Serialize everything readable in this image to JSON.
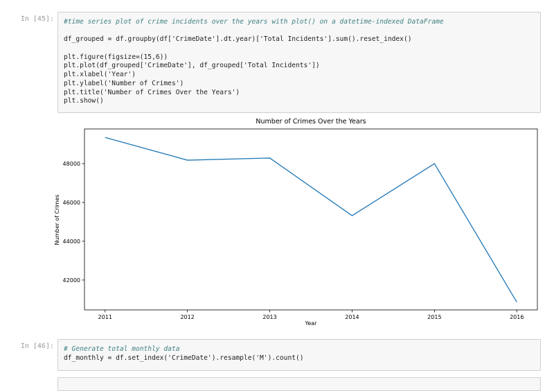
{
  "cells": [
    {
      "prompt": "In [45]:",
      "code": [
        [
          "#time series plot of crime incidents over the years with plot() on a datetime-indexed DataFrame"
        ],
        [
          "df_grouped = df.groupby(df['CrimeDate'].dt.year)['Total Incidents'].sum().reset_index()"
        ],
        [
          "plt.figure(figsize=(15,6))",
          "plt.plot(df_grouped['CrimeDate'], df_grouped['Total Incidents'])",
          "plt.xlabel('Year')",
          "plt.ylabel('Number of Crimes')",
          "plt.title('Number of Crimes Over the Years')",
          "plt.show()"
        ]
      ]
    },
    {
      "prompt": "In [46]:",
      "code": [
        [
          "# Generate total monthly data",
          "df_monthly = df.set_index('CrimeDate').resample('M').count()"
        ]
      ]
    }
  ],
  "chart_data": {
    "type": "line",
    "title": "Number of Crimes Over the Years",
    "x_label": "Year",
    "y_label": "Number of Crimes",
    "x": [
      2011,
      2012,
      2013,
      2014,
      2015,
      2016
    ],
    "series": [
      {
        "color": "#1f77b4",
        "values": [
          49350,
          48180,
          48290,
          45320,
          48000,
          40860
        ]
      }
    ],
    "xlim": [
      2010.75,
      2016.25
    ],
    "xticks": [
      2011,
      2012,
      2013,
      2014,
      2015,
      2016
    ],
    "ylim": [
      40460,
      49790
    ],
    "yticks": [
      42000,
      44000,
      46000,
      48000
    ]
  }
}
